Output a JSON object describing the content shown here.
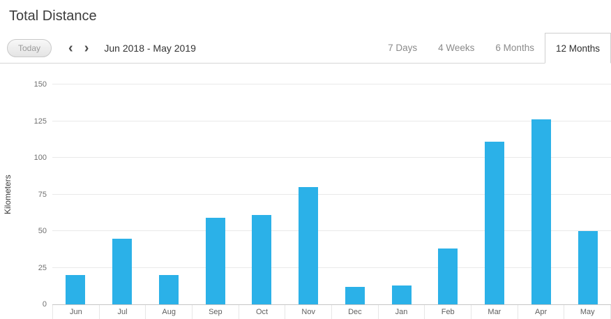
{
  "header": {
    "title": "Total Distance"
  },
  "toolbar": {
    "today_label": "Today",
    "prev_icon": "‹",
    "next_icon": "›",
    "date_range": "Jun 2018 - May 2019",
    "tabs": [
      {
        "label": "7 Days",
        "active": false
      },
      {
        "label": "4 Weeks",
        "active": false
      },
      {
        "label": "6 Months",
        "active": false
      },
      {
        "label": "12 Months",
        "active": true
      }
    ]
  },
  "chart_data": {
    "type": "bar",
    "title": "Total Distance",
    "categories": [
      "Jun",
      "Jul",
      "Aug",
      "Sep",
      "Oct",
      "Nov",
      "Dec",
      "Jan",
      "Feb",
      "Mar",
      "Apr",
      "May"
    ],
    "values": [
      20,
      45,
      20,
      59,
      61,
      80,
      12,
      13,
      38,
      111,
      126,
      50
    ],
    "xlabel": "",
    "ylabel": "Kilometers",
    "ylim": [
      0,
      150
    ],
    "yticks": [
      0,
      25,
      50,
      75,
      100,
      125,
      150
    ],
    "grid": true,
    "legend": "none",
    "bar_color": "#2bb1e8"
  }
}
